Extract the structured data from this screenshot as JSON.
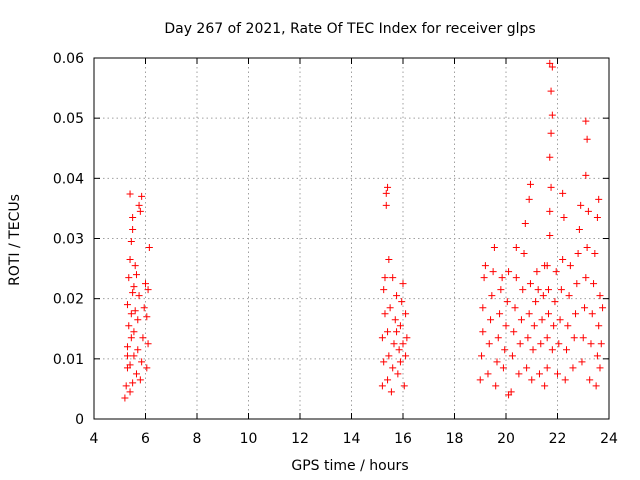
{
  "chart_data": {
    "type": "scatter",
    "title": "Day 267 of 2021, Rate Of TEC Index for receiver glps",
    "xlabel": "GPS time / hours",
    "ylabel": "ROTI / TECUs",
    "xlim": [
      4,
      24
    ],
    "ylim": [
      0,
      0.06
    ],
    "xticks": [
      4,
      6,
      8,
      10,
      12,
      14,
      16,
      18,
      20,
      22,
      24
    ],
    "xtick_labels": [
      "4",
      "6",
      "8",
      "10",
      "12",
      "14",
      "16",
      "18",
      "20",
      "22",
      "24"
    ],
    "yticks": [
      0,
      0.01,
      0.02,
      0.03,
      0.04,
      0.05,
      0.06
    ],
    "ytick_labels": [
      "0",
      "0.01",
      "0.02",
      "0.03",
      "0.04",
      "0.05",
      "0.06"
    ],
    "grid": true,
    "marker": "+",
    "marker_color": "#ff0000",
    "series": [
      {
        "name": "ROTI",
        "points": [
          [
            5.2,
            0.0035
          ],
          [
            5.25,
            0.0055
          ],
          [
            5.3,
            0.0085
          ],
          [
            5.3,
            0.012
          ],
          [
            5.35,
            0.0155
          ],
          [
            5.3,
            0.019
          ],
          [
            5.35,
            0.0235
          ],
          [
            5.4,
            0.0045
          ],
          [
            5.4,
            0.009
          ],
          [
            5.45,
            0.0135
          ],
          [
            5.45,
            0.0175
          ],
          [
            5.5,
            0.021
          ],
          [
            5.4,
            0.0265
          ],
          [
            5.45,
            0.0295
          ],
          [
            5.5,
            0.006
          ],
          [
            5.55,
            0.0105
          ],
          [
            5.55,
            0.0145
          ],
          [
            5.6,
            0.018
          ],
          [
            5.55,
            0.022
          ],
          [
            5.6,
            0.0255
          ],
          [
            5.5,
            0.0315
          ],
          [
            5.65,
            0.0075
          ],
          [
            5.7,
            0.0115
          ],
          [
            5.7,
            0.0165
          ],
          [
            5.75,
            0.0205
          ],
          [
            5.65,
            0.024
          ],
          [
            5.5,
            0.0335
          ],
          [
            5.4,
            0.0374
          ],
          [
            5.8,
            0.0065
          ],
          [
            5.85,
            0.0095
          ],
          [
            5.9,
            0.0135
          ],
          [
            5.95,
            0.0185
          ],
          [
            6.0,
            0.0225
          ],
          [
            5.8,
            0.0345
          ],
          [
            5.85,
            0.037
          ],
          [
            6.05,
            0.0085
          ],
          [
            6.1,
            0.0125
          ],
          [
            6.05,
            0.017
          ],
          [
            6.1,
            0.0215
          ],
          [
            6.15,
            0.0285
          ],
          [
            5.75,
            0.0355
          ],
          [
            5.3,
            0.0105
          ],
          [
            15.2,
            0.0055
          ],
          [
            15.25,
            0.0095
          ],
          [
            15.2,
            0.0135
          ],
          [
            15.3,
            0.0175
          ],
          [
            15.25,
            0.0215
          ],
          [
            15.3,
            0.0235
          ],
          [
            15.35,
            0.0355
          ],
          [
            15.4,
            0.0065
          ],
          [
            15.45,
            0.0105
          ],
          [
            15.4,
            0.0145
          ],
          [
            15.5,
            0.0185
          ],
          [
            15.45,
            0.0265
          ],
          [
            15.35,
            0.0375
          ],
          [
            15.4,
            0.0385
          ],
          [
            15.55,
            0.0045
          ],
          [
            15.6,
            0.0085
          ],
          [
            15.65,
            0.0125
          ],
          [
            15.7,
            0.0165
          ],
          [
            15.75,
            0.0205
          ],
          [
            15.6,
            0.0235
          ],
          [
            15.8,
            0.0075
          ],
          [
            15.85,
            0.0115
          ],
          [
            15.9,
            0.0155
          ],
          [
            15.95,
            0.0195
          ],
          [
            16.0,
            0.0225
          ],
          [
            15.9,
            0.0095
          ],
          [
            16.05,
            0.0055
          ],
          [
            16.1,
            0.0105
          ],
          [
            16.15,
            0.0135
          ],
          [
            16.1,
            0.0175
          ],
          [
            16.0,
            0.0125
          ],
          [
            15.75,
            0.0145
          ],
          [
            19.0,
            0.0065
          ],
          [
            19.05,
            0.0105
          ],
          [
            19.1,
            0.0145
          ],
          [
            19.1,
            0.0185
          ],
          [
            19.15,
            0.0235
          ],
          [
            19.2,
            0.0255
          ],
          [
            19.3,
            0.0075
          ],
          [
            19.35,
            0.0125
          ],
          [
            19.4,
            0.0165
          ],
          [
            19.45,
            0.0205
          ],
          [
            19.5,
            0.0245
          ],
          [
            19.55,
            0.0285
          ],
          [
            19.6,
            0.0055
          ],
          [
            19.65,
            0.0095
          ],
          [
            19.7,
            0.0135
          ],
          [
            19.75,
            0.0175
          ],
          [
            19.8,
            0.0215
          ],
          [
            19.85,
            0.0235
          ],
          [
            19.9,
            0.0085
          ],
          [
            19.95,
            0.0115
          ],
          [
            20.0,
            0.0155
          ],
          [
            20.05,
            0.0195
          ],
          [
            20.1,
            0.0245
          ],
          [
            20.1,
            0.004
          ],
          [
            20.2,
            0.0045
          ],
          [
            20.25,
            0.0105
          ],
          [
            20.3,
            0.0145
          ],
          [
            20.35,
            0.0185
          ],
          [
            20.4,
            0.0235
          ],
          [
            20.4,
            0.0285
          ],
          [
            20.5,
            0.0075
          ],
          [
            20.55,
            0.0125
          ],
          [
            20.6,
            0.0165
          ],
          [
            20.65,
            0.0215
          ],
          [
            20.7,
            0.0275
          ],
          [
            20.75,
            0.0325
          ],
          [
            20.8,
            0.0085
          ],
          [
            20.85,
            0.0135
          ],
          [
            20.9,
            0.0175
          ],
          [
            20.95,
            0.0225
          ],
          [
            20.9,
            0.0365
          ],
          [
            20.95,
            0.039
          ],
          [
            21.0,
            0.0065
          ],
          [
            21.05,
            0.0115
          ],
          [
            21.1,
            0.0155
          ],
          [
            21.15,
            0.0195
          ],
          [
            21.2,
            0.0245
          ],
          [
            21.25,
            0.0215
          ],
          [
            21.3,
            0.0075
          ],
          [
            21.35,
            0.0125
          ],
          [
            21.4,
            0.0165
          ],
          [
            21.45,
            0.0205
          ],
          [
            21.5,
            0.0255
          ],
          [
            21.5,
            0.0055
          ],
          [
            21.6,
            0.0085
          ],
          [
            21.6,
            0.0135
          ],
          [
            21.65,
            0.0175
          ],
          [
            21.65,
            0.0215
          ],
          [
            21.6,
            0.0255
          ],
          [
            21.7,
            0.0305
          ],
          [
            21.7,
            0.0345
          ],
          [
            21.75,
            0.0385
          ],
          [
            21.7,
            0.0435
          ],
          [
            21.75,
            0.0475
          ],
          [
            21.8,
            0.0505
          ],
          [
            21.75,
            0.0545
          ],
          [
            21.8,
            0.0585
          ],
          [
            21.7,
            0.0591
          ],
          [
            21.8,
            0.0115
          ],
          [
            21.85,
            0.0155
          ],
          [
            21.9,
            0.0195
          ],
          [
            21.95,
            0.0245
          ],
          [
            22.0,
            0.0075
          ],
          [
            22.05,
            0.0125
          ],
          [
            22.1,
            0.0165
          ],
          [
            22.15,
            0.0215
          ],
          [
            22.2,
            0.0265
          ],
          [
            22.25,
            0.0335
          ],
          [
            22.2,
            0.0375
          ],
          [
            22.3,
            0.0065
          ],
          [
            22.35,
            0.0115
          ],
          [
            22.4,
            0.0155
          ],
          [
            22.45,
            0.0205
          ],
          [
            22.5,
            0.0255
          ],
          [
            22.6,
            0.0085
          ],
          [
            22.65,
            0.0135
          ],
          [
            22.7,
            0.0175
          ],
          [
            22.75,
            0.0225
          ],
          [
            22.8,
            0.0275
          ],
          [
            22.85,
            0.0315
          ],
          [
            22.9,
            0.0355
          ],
          [
            22.95,
            0.0095
          ],
          [
            23.0,
            0.0135
          ],
          [
            23.05,
            0.0185
          ],
          [
            23.1,
            0.0235
          ],
          [
            23.15,
            0.0285
          ],
          [
            23.1,
            0.0405
          ],
          [
            23.15,
            0.0465
          ],
          [
            23.1,
            0.0495
          ],
          [
            23.2,
            0.0345
          ],
          [
            23.25,
            0.0065
          ],
          [
            23.3,
            0.0125
          ],
          [
            23.35,
            0.0175
          ],
          [
            23.4,
            0.0225
          ],
          [
            23.45,
            0.0275
          ],
          [
            23.5,
            0.0055
          ],
          [
            23.55,
            0.0105
          ],
          [
            23.6,
            0.0155
          ],
          [
            23.65,
            0.0205
          ],
          [
            23.55,
            0.0335
          ],
          [
            23.6,
            0.0365
          ],
          [
            23.7,
            0.0125
          ],
          [
            23.75,
            0.0185
          ],
          [
            23.65,
            0.0085
          ]
        ]
      }
    ]
  }
}
